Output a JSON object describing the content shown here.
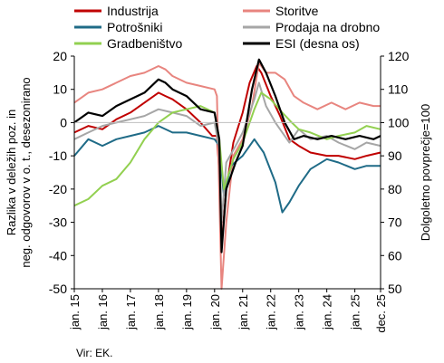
{
  "chart_data": {
    "type": "line",
    "xlabel": "",
    "ylabel_left": "Razlika v deležih poz. in neg. odgovorov v o. t., desezonirano",
    "ylabel_right": "Dolgoletno povprečje=100",
    "ylim_left": [
      -50,
      20
    ],
    "ylim_right": [
      50,
      120
    ],
    "yticks_left": [
      -50,
      -40,
      -30,
      -20,
      -10,
      0,
      10,
      20
    ],
    "yticks_right": [
      50,
      60,
      70,
      80,
      90,
      100,
      110,
      120
    ],
    "xticks": [
      "jan. 15",
      "jan. 16",
      "jan. 17",
      "jan. 18",
      "jan. 19",
      "jan. 20",
      "jan. 21",
      "jan. 22",
      "jan. 23",
      "jan. 24",
      "jan. 25",
      "dec. 25"
    ],
    "x_start": "2015-01",
    "x_end": "2025-12",
    "legend_position": "top",
    "source": "Vir: EK.",
    "grid": false,
    "series": [
      {
        "name": "Industrija",
        "color": "#c00000",
        "axis": "left",
        "points": [
          [
            "2015-01",
            -3
          ],
          [
            "2015-07",
            -1
          ],
          [
            "2016-01",
            -2
          ],
          [
            "2016-07",
            1
          ],
          [
            "2017-01",
            3
          ],
          [
            "2017-07",
            6
          ],
          [
            "2018-01",
            9
          ],
          [
            "2018-04",
            8
          ],
          [
            "2018-07",
            7
          ],
          [
            "2019-01",
            4
          ],
          [
            "2019-07",
            0
          ],
          [
            "2019-12",
            -4
          ],
          [
            "2020-02",
            -4
          ],
          [
            "2020-03",
            -15
          ],
          [
            "2020-04",
            -37
          ],
          [
            "2020-06",
            -20
          ],
          [
            "2020-09",
            -6
          ],
          [
            "2021-01",
            3
          ],
          [
            "2021-04",
            12
          ],
          [
            "2021-07",
            17
          ],
          [
            "2021-09",
            15
          ],
          [
            "2022-01",
            8
          ],
          [
            "2022-05",
            2
          ],
          [
            "2022-09",
            -5
          ],
          [
            "2023-01",
            -7
          ],
          [
            "2023-06",
            -9
          ],
          [
            "2024-01",
            -10
          ],
          [
            "2024-06",
            -10
          ],
          [
            "2025-01",
            -11
          ],
          [
            "2025-06",
            -10
          ],
          [
            "2025-12",
            -9
          ]
        ]
      },
      {
        "name": "Storitve",
        "color": "#e8857f",
        "axis": "left",
        "points": [
          [
            "2015-01",
            6
          ],
          [
            "2015-07",
            9
          ],
          [
            "2016-01",
            10
          ],
          [
            "2016-07",
            12
          ],
          [
            "2017-01",
            14
          ],
          [
            "2017-07",
            15
          ],
          [
            "2018-01",
            17
          ],
          [
            "2018-04",
            16
          ],
          [
            "2018-07",
            14
          ],
          [
            "2019-01",
            12
          ],
          [
            "2019-07",
            11
          ],
          [
            "2020-01",
            10
          ],
          [
            "2020-02",
            8
          ],
          [
            "2020-04",
            -50
          ],
          [
            "2020-06",
            -30
          ],
          [
            "2020-09",
            -10
          ],
          [
            "2021-01",
            -5
          ],
          [
            "2021-05",
            5
          ],
          [
            "2021-08",
            18
          ],
          [
            "2021-11",
            15
          ],
          [
            "2022-03",
            15
          ],
          [
            "2022-07",
            13
          ],
          [
            "2022-11",
            8
          ],
          [
            "2023-03",
            6
          ],
          [
            "2023-09",
            4
          ],
          [
            "2024-03",
            6
          ],
          [
            "2024-09",
            4
          ],
          [
            "2025-03",
            6
          ],
          [
            "2025-09",
            5
          ],
          [
            "2025-12",
            5
          ]
        ]
      },
      {
        "name": "Potrošniki",
        "color": "#1f6b87",
        "axis": "left",
        "points": [
          [
            "2015-01",
            -10
          ],
          [
            "2015-07",
            -5
          ],
          [
            "2016-01",
            -7
          ],
          [
            "2016-07",
            -5
          ],
          [
            "2017-01",
            -4
          ],
          [
            "2017-07",
            -3
          ],
          [
            "2018-01",
            -1
          ],
          [
            "2018-07",
            -3
          ],
          [
            "2019-01",
            -3
          ],
          [
            "2019-07",
            -4
          ],
          [
            "2020-01",
            -5
          ],
          [
            "2020-03",
            -7
          ],
          [
            "2020-05",
            -22
          ],
          [
            "2020-08",
            -13
          ],
          [
            "2021-01",
            -10
          ],
          [
            "2021-06",
            -5
          ],
          [
            "2021-10",
            -9
          ],
          [
            "2022-03",
            -18
          ],
          [
            "2022-06",
            -27
          ],
          [
            "2022-09",
            -24
          ],
          [
            "2023-01",
            -19
          ],
          [
            "2023-06",
            -14
          ],
          [
            "2024-01",
            -11
          ],
          [
            "2024-06",
            -12
          ],
          [
            "2025-01",
            -14
          ],
          [
            "2025-06",
            -13
          ],
          [
            "2025-12",
            -13
          ]
        ]
      },
      {
        "name": "Prodaja na drobno",
        "color": "#a6a6a6",
        "axis": "left",
        "points": [
          [
            "2015-01",
            -5
          ],
          [
            "2015-07",
            -3
          ],
          [
            "2016-01",
            -1
          ],
          [
            "2016-07",
            0
          ],
          [
            "2017-01",
            1
          ],
          [
            "2017-07",
            2
          ],
          [
            "2018-01",
            4
          ],
          [
            "2018-07",
            3
          ],
          [
            "2019-01",
            2
          ],
          [
            "2019-07",
            -1
          ],
          [
            "2020-01",
            0
          ],
          [
            "2020-03",
            -8
          ],
          [
            "2020-04",
            -30
          ],
          [
            "2020-06",
            -12
          ],
          [
            "2020-10",
            -7
          ],
          [
            "2021-01",
            -3
          ],
          [
            "2021-06",
            7
          ],
          [
            "2021-08",
            12
          ],
          [
            "2021-11",
            5
          ],
          [
            "2022-03",
            0
          ],
          [
            "2022-06",
            -3
          ],
          [
            "2022-09",
            -6
          ],
          [
            "2023-01",
            -2
          ],
          [
            "2023-06",
            -5
          ],
          [
            "2024-01",
            -4
          ],
          [
            "2024-06",
            -6
          ],
          [
            "2025-01",
            -8
          ],
          [
            "2025-06",
            -6
          ],
          [
            "2025-12",
            -7
          ]
        ]
      },
      {
        "name": "Gradbeništvo",
        "color": "#92d050",
        "axis": "left",
        "points": [
          [
            "2015-01",
            -25
          ],
          [
            "2015-07",
            -23
          ],
          [
            "2016-01",
            -19
          ],
          [
            "2016-07",
            -17
          ],
          [
            "2017-01",
            -12
          ],
          [
            "2017-07",
            -5
          ],
          [
            "2018-01",
            0
          ],
          [
            "2018-07",
            3
          ],
          [
            "2019-01",
            4
          ],
          [
            "2019-07",
            5
          ],
          [
            "2020-01",
            3
          ],
          [
            "2020-03",
            -5
          ],
          [
            "2020-05",
            -20
          ],
          [
            "2020-09",
            -11
          ],
          [
            "2021-01",
            -6
          ],
          [
            "2021-06",
            4
          ],
          [
            "2021-09",
            9
          ],
          [
            "2022-01",
            7
          ],
          [
            "2022-06",
            3
          ],
          [
            "2022-10",
            0
          ],
          [
            "2023-01",
            -2
          ],
          [
            "2023-06",
            -3
          ],
          [
            "2024-01",
            -5
          ],
          [
            "2024-06",
            -4
          ],
          [
            "2025-01",
            -3
          ],
          [
            "2025-06",
            -1
          ],
          [
            "2025-12",
            -2
          ]
        ]
      },
      {
        "name": "ESI (desna os)",
        "color": "#000000",
        "axis": "right",
        "points": [
          [
            "2015-01",
            100
          ],
          [
            "2015-07",
            103
          ],
          [
            "2016-01",
            102
          ],
          [
            "2016-07",
            105
          ],
          [
            "2017-01",
            107
          ],
          [
            "2017-07",
            109
          ],
          [
            "2018-01",
            113
          ],
          [
            "2018-04",
            112
          ],
          [
            "2018-07",
            110
          ],
          [
            "2019-01",
            108
          ],
          [
            "2019-07",
            104
          ],
          [
            "2020-01",
            103
          ],
          [
            "2020-03",
            95
          ],
          [
            "2020-04",
            61
          ],
          [
            "2020-06",
            80
          ],
          [
            "2020-10",
            88
          ],
          [
            "2021-01",
            93
          ],
          [
            "2021-05",
            110
          ],
          [
            "2021-08",
            119
          ],
          [
            "2021-11",
            115
          ],
          [
            "2022-03",
            108
          ],
          [
            "2022-07",
            100
          ],
          [
            "2022-11",
            95
          ],
          [
            "2023-03",
            96
          ],
          [
            "2023-09",
            95
          ],
          [
            "2024-03",
            96
          ],
          [
            "2024-09",
            95
          ],
          [
            "2025-03",
            96
          ],
          [
            "2025-09",
            95
          ],
          [
            "2025-12",
            96
          ]
        ]
      }
    ]
  }
}
